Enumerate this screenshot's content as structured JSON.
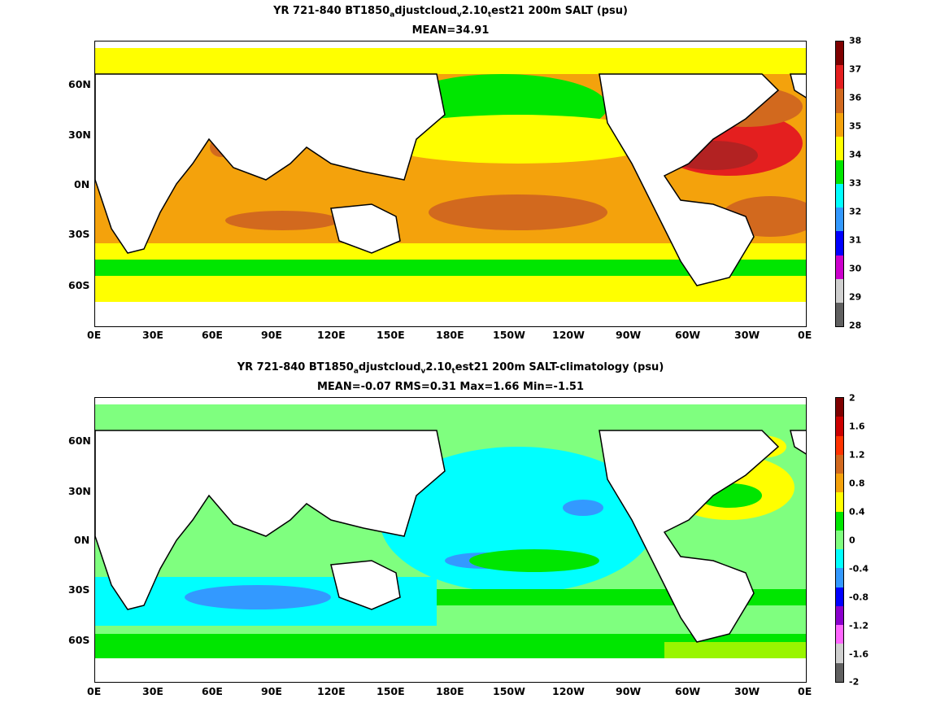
{
  "panels": [
    {
      "title_parts": [
        "YR 721-840 BT1850",
        "a",
        "djustcloud",
        "v",
        "2.10",
        "t",
        "est21 200m SALT (psu)"
      ],
      "subtitle": "MEAN=34.91",
      "colorbar": {
        "labels": [
          "38",
          "37",
          "36",
          "35",
          "34",
          "33",
          "32",
          "31",
          "30",
          "29",
          "28"
        ],
        "colors": [
          "#7f0000",
          "#e41f1f",
          "#d2691e",
          "#f4a20c",
          "#ffff00",
          "#00e600",
          "#00ffff",
          "#3399ff",
          "#0000ff",
          "#cc00cc",
          "#cfcfcf",
          "#606060"
        ]
      }
    },
    {
      "title_parts": [
        "YR 721-840 BT1850",
        "a",
        "djustcloud",
        "v",
        "2.10",
        "t",
        "est21 200m SALT-climatology (psu)"
      ],
      "subtitle": "MEAN=-0.07   RMS=0.31   Max=1.66   Min=-1.51",
      "colorbar": {
        "labels": [
          "2",
          "1.6",
          "1.2",
          "0.8",
          "0.4",
          "0",
          "-0.4",
          "-0.8",
          "-1.2",
          "-1.6",
          "-2"
        ],
        "colors": [
          "#7f0000",
          "#cc0000",
          "#ff3300",
          "#d2691e",
          "#f4a20c",
          "#ffff00",
          "#00e600",
          "#7fff7f",
          "#00ffff",
          "#3399ff",
          "#0000ff",
          "#8a00cc",
          "#ff66ff",
          "#cfcfcf",
          "#606060"
        ]
      }
    }
  ],
  "x_axis_labels": [
    "0E",
    "30E",
    "60E",
    "90E",
    "120E",
    "150E",
    "180E",
    "150W",
    "120W",
    "90W",
    "60W",
    "30W",
    "0E"
  ],
  "y_axis_labels": [
    "60N",
    "30N",
    "0N",
    "30S",
    "60S"
  ]
}
